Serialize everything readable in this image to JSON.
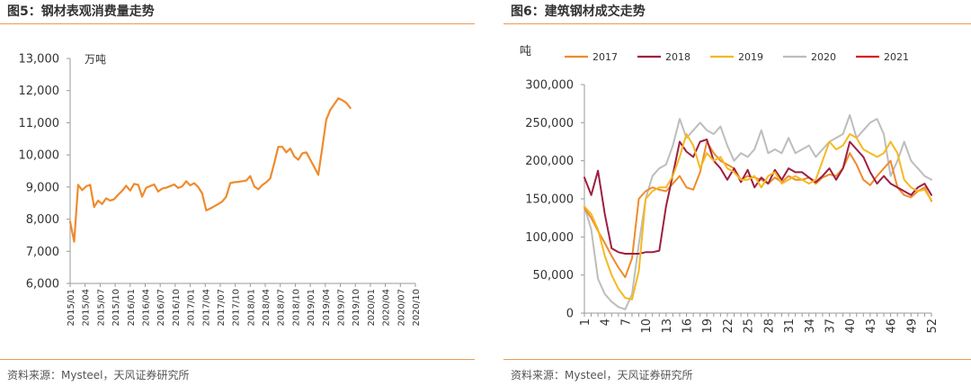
{
  "left": {
    "title": "图5：钢材表观消费量走势",
    "source": "资料来源：Mysteel，天风证券研究所"
  },
  "right": {
    "title": "图6：建筑钢材成交走势",
    "source": "资料来源：Mysteel，天风证券研究所"
  },
  "colors": {
    "rule": "#ed9b50",
    "s2017": "#ef8b2c",
    "s2018": "#9e1f40",
    "s2019": "#f5b921",
    "s2020": "#bdbdbd",
    "s2021": "#d81e1e"
  },
  "chart_data": [
    {
      "type": "line",
      "title": "图5：钢材表观消费量走势",
      "unit": "万吨",
      "xlabel": "",
      "ylabel": "",
      "ylim": [
        6000,
        13000
      ],
      "yticks": [
        "6,000",
        "7,000",
        "8,000",
        "9,000",
        "10,000",
        "11,000",
        "12,000",
        "13,000"
      ],
      "xlim": [
        0,
        69
      ],
      "xticks": [
        {
          "x": 0,
          "label": "2015/01"
        },
        {
          "x": 3,
          "label": "2015/04"
        },
        {
          "x": 6,
          "label": "2015/07"
        },
        {
          "x": 9,
          "label": "2015/10"
        },
        {
          "x": 12,
          "label": "2016/01"
        },
        {
          "x": 15,
          "label": "2016/04"
        },
        {
          "x": 18,
          "label": "2016/07"
        },
        {
          "x": 21,
          "label": "2016/10"
        },
        {
          "x": 24,
          "label": "2017/01"
        },
        {
          "x": 27,
          "label": "2017/04"
        },
        {
          "x": 30,
          "label": "2017/07"
        },
        {
          "x": 33,
          "label": "2017/10"
        },
        {
          "x": 36,
          "label": "2018/01"
        },
        {
          "x": 39,
          "label": "2018/04"
        },
        {
          "x": 42,
          "label": "2018/07"
        },
        {
          "x": 45,
          "label": "2018/10"
        },
        {
          "x": 48,
          "label": "2019/01"
        },
        {
          "x": 51,
          "label": "2019/04"
        },
        {
          "x": 54,
          "label": "2019/07"
        },
        {
          "x": 57,
          "label": "2019/10"
        },
        {
          "x": 60,
          "label": "2020/01"
        },
        {
          "x": 63,
          "label": "2020/04"
        },
        {
          "x": 66,
          "label": "2020/07"
        },
        {
          "x": 69,
          "label": "2020/10"
        }
      ],
      "grid": false,
      "series": [
        {
          "color": "#ef8b2c",
          "points": [
            [
              0,
              7920
            ],
            [
              0.8,
              7300
            ],
            [
              1.6,
              9070
            ],
            [
              2.4,
              8900
            ],
            [
              3.2,
              9020
            ],
            [
              4.0,
              9070
            ],
            [
              4.8,
              8380
            ],
            [
              5.6,
              8580
            ],
            [
              6.4,
              8470
            ],
            [
              7.2,
              8650
            ],
            [
              8.0,
              8580
            ],
            [
              8.8,
              8620
            ],
            [
              9.6,
              8760
            ],
            [
              10.4,
              8880
            ],
            [
              11.2,
              9040
            ],
            [
              12.0,
              8890
            ],
            [
              12.8,
              9100
            ],
            [
              13.6,
              9070
            ],
            [
              14.4,
              8700
            ],
            [
              15.2,
              8980
            ],
            [
              16.0,
              9030
            ],
            [
              16.8,
              9080
            ],
            [
              17.6,
              8860
            ],
            [
              18.4,
              8950
            ],
            [
              19.2,
              8980
            ],
            [
              20.0,
              9030
            ],
            [
              20.8,
              9080
            ],
            [
              21.6,
              8970
            ],
            [
              22.4,
              9020
            ],
            [
              23.2,
              9180
            ],
            [
              24.0,
              9050
            ],
            [
              24.8,
              9120
            ],
            [
              25.6,
              9000
            ],
            [
              26.4,
              8800
            ],
            [
              27.2,
              8270
            ],
            [
              28.0,
              8330
            ],
            [
              28.8,
              8400
            ],
            [
              29.6,
              8470
            ],
            [
              30.4,
              8550
            ],
            [
              31.2,
              8700
            ],
            [
              32.0,
              9120
            ],
            [
              32.8,
              9150
            ],
            [
              33.6,
              9160
            ],
            [
              34.4,
              9180
            ],
            [
              35.2,
              9200
            ],
            [
              36.0,
              9340
            ],
            [
              36.8,
              9020
            ],
            [
              37.6,
              8930
            ],
            [
              38.4,
              9060
            ],
            [
              39.2,
              9150
            ],
            [
              40.0,
              9270
            ],
            [
              40.8,
              9750
            ],
            [
              41.6,
              10250
            ],
            [
              42.4,
              10250
            ],
            [
              43.2,
              10080
            ],
            [
              44.0,
              10200
            ],
            [
              44.8,
              9950
            ],
            [
              45.6,
              9850
            ],
            [
              46.4,
              10050
            ],
            [
              47.2,
              10080
            ],
            [
              48.0,
              9850
            ],
            [
              48.8,
              9620
            ],
            [
              49.6,
              9380
            ],
            [
              50.4,
              10230
            ],
            [
              51.2,
              11100
            ],
            [
              52.0,
              11400
            ],
            [
              52.8,
              11580
            ],
            [
              53.6,
              11760
            ],
            [
              54.4,
              11700
            ],
            [
              55.2,
              11620
            ],
            [
              56.0,
              11460
            ]
          ]
        }
      ]
    },
    {
      "type": "line",
      "title": "图6：建筑钢材成交走势",
      "unit": "吨",
      "xlabel": "",
      "ylabel": "",
      "ylim": [
        0,
        300000
      ],
      "yticks": [
        "0",
        "50,000",
        "100,000",
        "150,000",
        "200,000",
        "250,000",
        "300,000"
      ],
      "xlim": [
        1,
        52
      ],
      "xticks": [
        "1",
        "4",
        "7",
        "10",
        "13",
        "16",
        "19",
        "22",
        "25",
        "28",
        "31",
        "34",
        "37",
        "40",
        "43",
        "46",
        "49",
        "52"
      ],
      "legend": "top",
      "grid": false,
      "series": [
        {
          "name": "2017",
          "color": "#ef8b2c",
          "values": [
            138000,
            125000,
            108000,
            92000,
            75000,
            60000,
            47000,
            72000,
            150000,
            160000,
            165000,
            162000,
            160000,
            170000,
            180000,
            165000,
            162000,
            185000,
            225000,
            210000,
            200000,
            195000,
            190000,
            175000,
            180000,
            178000,
            175000,
            170000,
            178000,
            172000,
            180000,
            175000,
            175000,
            178000,
            170000,
            178000,
            182000,
            180000,
            190000,
            210000,
            195000,
            175000,
            168000,
            180000,
            190000,
            200000,
            165000,
            155000,
            152000,
            160000,
            165000,
            147000
          ]
        },
        {
          "name": "2018",
          "color": "#9e1f40",
          "values": [
            178000,
            155000,
            187000,
            130000,
            85000,
            80000,
            78000,
            78000,
            78000,
            80000,
            80000,
            82000,
            140000,
            182000,
            225000,
            212000,
            205000,
            225000,
            228000,
            200000,
            190000,
            175000,
            190000,
            172000,
            188000,
            165000,
            178000,
            170000,
            188000,
            175000,
            190000,
            185000,
            185000,
            178000,
            172000,
            180000,
            190000,
            175000,
            190000,
            225000,
            215000,
            205000,
            185000,
            170000,
            180000,
            170000,
            165000,
            160000,
            155000,
            165000,
            170000,
            155000
          ]
        },
        {
          "name": "2019",
          "color": "#f5b921",
          "values": [
            140000,
            130000,
            110000,
            75000,
            50000,
            32000,
            20000,
            18000,
            55000,
            150000,
            160000,
            165000,
            165000,
            180000,
            205000,
            235000,
            220000,
            190000,
            210000,
            200000,
            205000,
            190000,
            185000,
            175000,
            175000,
            180000,
            165000,
            180000,
            185000,
            170000,
            175000,
            180000,
            175000,
            170000,
            175000,
            200000,
            225000,
            215000,
            220000,
            235000,
            230000,
            215000,
            210000,
            205000,
            210000,
            225000,
            210000,
            175000,
            165000,
            160000,
            162000,
            148000
          ]
        },
        {
          "name": "2020",
          "color": "#bdbdbd",
          "values": [
            140000,
            110000,
            45000,
            25000,
            15000,
            8000,
            5000,
            25000,
            90000,
            150000,
            180000,
            190000,
            195000,
            220000,
            255000,
            230000,
            240000,
            250000,
            240000,
            235000,
            245000,
            220000,
            200000,
            210000,
            205000,
            215000,
            240000,
            210000,
            215000,
            210000,
            230000,
            210000,
            215000,
            220000,
            205000,
            215000,
            225000,
            230000,
            235000,
            260000,
            230000,
            240000,
            250000,
            255000,
            235000,
            180000,
            200000,
            225000,
            200000,
            190000,
            180000,
            175000
          ]
        },
        {
          "name": "2021",
          "color": "#d81e1e",
          "values": []
        }
      ]
    }
  ]
}
